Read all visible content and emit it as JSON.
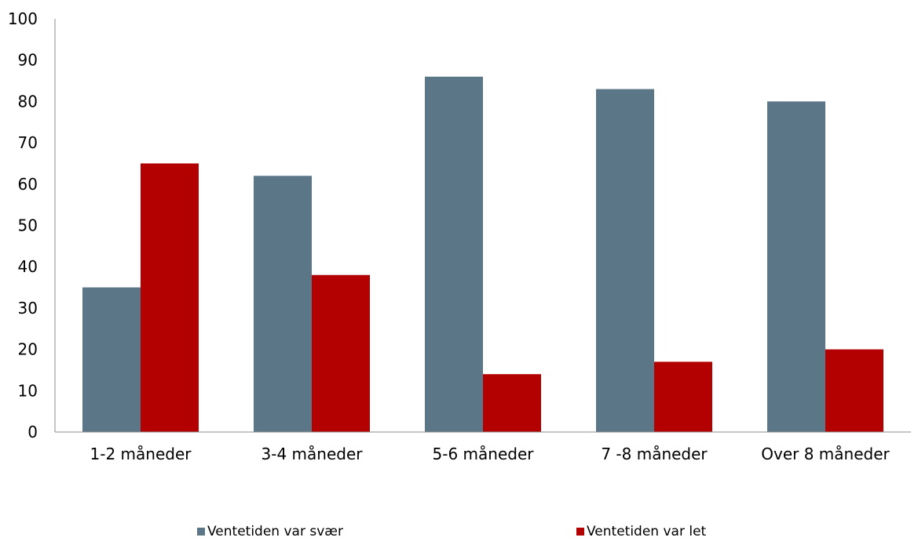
{
  "chart_data": {
    "type": "bar",
    "title": "",
    "xlabel": "",
    "ylabel": "",
    "categories": [
      "1-2 måneder",
      "3-4 måneder",
      "5-6 måneder",
      "7 -8 måneder",
      "Over 8 måneder"
    ],
    "series": [
      {
        "name": "Ventetiden var svær",
        "color": "#5b7687",
        "values": [
          35,
          62,
          86,
          83,
          80
        ]
      },
      {
        "name": "Ventetiden var let",
        "color": "#b30000",
        "values": [
          65,
          38,
          14,
          17,
          20
        ]
      }
    ],
    "ylim": [
      0,
      100
    ],
    "yticks": [
      "0",
      "10",
      "20",
      "30",
      "40",
      "50",
      "60",
      "70",
      "80",
      "90",
      "100"
    ],
    "grid": false,
    "legend_position": "bottom"
  }
}
